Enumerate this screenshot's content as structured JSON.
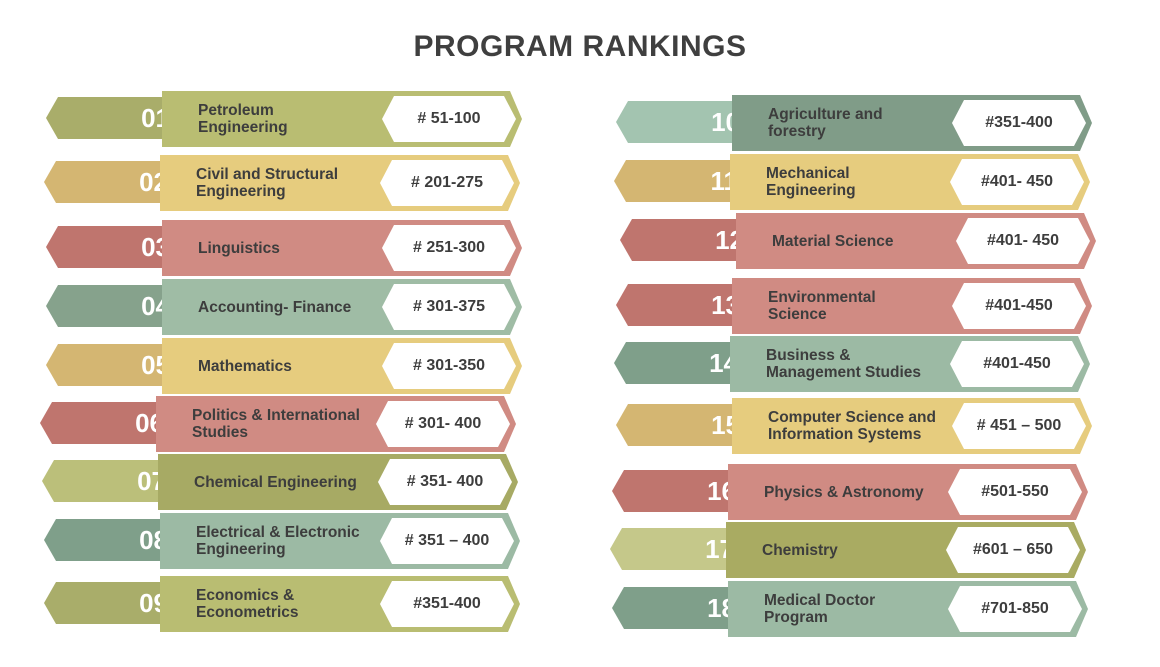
{
  "title": "PROGRAM RANKINGS",
  "colors": {
    "olive": "#b9bd72",
    "gold": "#e6cc7e",
    "rose": "#d08b83",
    "sage": "#9fbca5",
    "text": "#3d3d3d"
  },
  "left": [
    {
      "num": "01",
      "name": "Petroleum\nEngineering",
      "rank": "# 51-100"
    },
    {
      "num": "02",
      "name": "Civil and Structural\nEngineering",
      "rank": "# 201-275"
    },
    {
      "num": "03",
      "name": "Linguistics",
      "rank": "# 251-300"
    },
    {
      "num": "04",
      "name": "Accounting- Finance",
      "rank": "# 301-375"
    },
    {
      "num": "05",
      "name": "Mathematics",
      "rank": "# 301-350"
    },
    {
      "num": "06",
      "name": "Politics & International\nStudies",
      "rank": "# 301- 400"
    },
    {
      "num": "07",
      "name": "Chemical Engineering",
      "rank": "# 351- 400"
    },
    {
      "num": "08",
      "name": "Electrical & Electronic\nEngineering",
      "rank": "# 351 – 400"
    },
    {
      "num": "09",
      "name": "Economics &\nEconometrics",
      "rank": "#351-400"
    }
  ],
  "right": [
    {
      "num": "10",
      "name": "Agriculture and\nforestry",
      "rank": "#351-400"
    },
    {
      "num": "11",
      "name": "Mechanical\nEngineering",
      "rank": "#401- 450"
    },
    {
      "num": "12",
      "name": "Material Science",
      "rank": "#401- 450"
    },
    {
      "num": "13",
      "name": "Environmental\nScience",
      "rank": "#401-450"
    },
    {
      "num": "14",
      "name": "Business &\nManagement Studies",
      "rank": "#401-450"
    },
    {
      "num": "15",
      "name": "Computer Science and\nInformation Systems",
      "rank": "# 451 – 500"
    },
    {
      "num": "16",
      "name": "Physics & Astronomy",
      "rank": "#501-550"
    },
    {
      "num": "17",
      "name": "Chemistry",
      "rank": "#601 – 650"
    },
    {
      "num": "18",
      "name": "Medical Doctor\nProgram",
      "rank": "#701-850"
    }
  ]
}
